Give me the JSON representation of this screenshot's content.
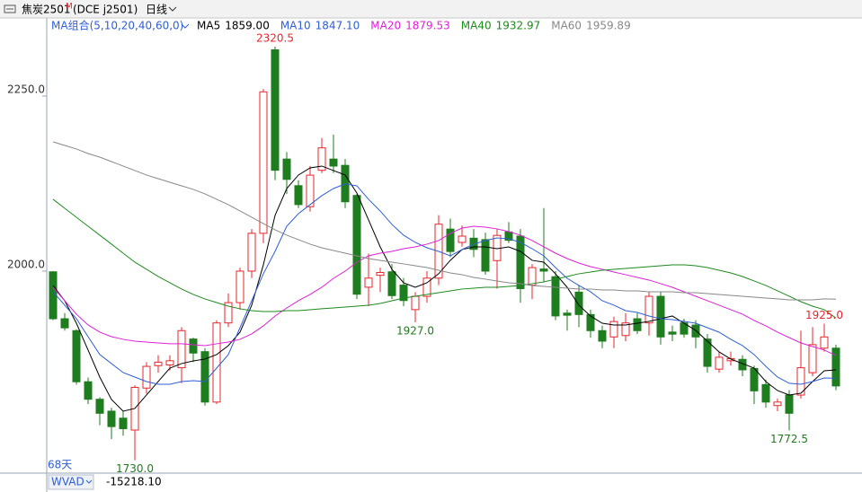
{
  "toolbar": {
    "symbol": "焦炭2501",
    "symbol_flag": "M",
    "exchange_code": "(DCE j2501)",
    "period": "日线"
  },
  "chart_data": {
    "type": "candlestick",
    "indicator_title": "MA组合(5,10,20,40,60,0)",
    "days_label": "68天",
    "ylim": [
      1711.5,
      2361.5
    ],
    "yticks": [
      {
        "value": 2250,
        "label": "2250.0"
      },
      {
        "value": 2000,
        "label": "2000.0"
      }
    ],
    "grid": false,
    "up_color": "#e8262b",
    "down_color": "#1e7d1e",
    "candles": {
      "open": [
        1999,
        1932,
        1915,
        1842,
        1817,
        1800,
        1790,
        1773,
        1833,
        1865,
        1866,
        1862,
        1903,
        1885,
        1813,
        1926,
        1955,
        2000,
        2054,
        2316,
        2160,
        2122,
        2092,
        2144,
        2160,
        2151,
        2108,
        1977,
        1994,
        1999,
        1980,
        1945,
        1964,
        1990,
        2060,
        2041,
        2047,
        2045,
        2015,
        2056,
        2050,
        1980,
        2003,
        1992,
        1940,
        1970,
        1938,
        1915,
        1906,
        1908,
        1932,
        1926,
        1964,
        1913,
        1926,
        1923,
        1903,
        1860,
        1872,
        1874,
        1861,
        1838,
        1808,
        1823,
        1823,
        1855,
        1890,
        1890
      ],
      "high": [
        2000,
        1940,
        1917,
        1848,
        1820,
        1805,
        1800,
        1837,
        1870,
        1880,
        1880,
        1920,
        1905,
        1890,
        1930,
        1968,
        2005,
        2060,
        2260,
        2320.5,
        2170,
        2130,
        2150,
        2190,
        2195,
        2160,
        2110,
        2025,
        2005,
        2010,
        1990,
        1970,
        2000,
        2080,
        2075,
        2065,
        2060,
        2055,
        2060,
        2070,
        2060,
        2010,
        2090,
        2000,
        1945,
        1980,
        1945,
        1922,
        1935,
        1940,
        1940,
        1970,
        1970,
        1922,
        1932,
        1930,
        1910,
        1885,
        1885,
        1880,
        1865,
        1845,
        1818,
        1830,
        1915,
        1920,
        1925,
        1895
      ],
      "low": [
        1930,
        1915,
        1838,
        1810,
        1780,
        1760,
        1765,
        1730,
        1825,
        1855,
        1858,
        1840,
        1870,
        1808,
        1810,
        1920,
        1945,
        1990,
        2040,
        2130,
        2110,
        2090,
        2085,
        2140,
        2140,
        2090,
        1960,
        1950,
        1970,
        1960,
        1950,
        1927,
        1955,
        1980,
        2020,
        2035,
        2020,
        1995,
        1975,
        2040,
        1955,
        1960,
        1985,
        1930,
        1915,
        1920,
        1905,
        1890,
        1890,
        1900,
        1910,
        1908,
        1895,
        1900,
        1905,
        1890,
        1855,
        1855,
        1865,
        1850,
        1810,
        1805,
        1800,
        1772.5,
        1818,
        1850,
        1885,
        1830
      ],
      "close": [
        1932,
        1919,
        1842,
        1817,
        1797,
        1778,
        1775,
        1834,
        1864,
        1870,
        1872,
        1915,
        1883,
        1813,
        1926,
        1955,
        2000,
        2054,
        2256,
        2144,
        2131,
        2095,
        2137,
        2176,
        2150,
        2099,
        1967,
        1990,
        1998,
        1965,
        1958,
        1964,
        1990,
        2067,
        2028,
        2050,
        2031,
        2000,
        2051,
        2044,
        1975,
        2005,
        2000,
        1936,
        1937,
        1938,
        1915,
        1900,
        1928,
        1926,
        1915,
        1964,
        1906,
        1910,
        1910,
        1906,
        1864,
        1877,
        1875,
        1859,
        1829,
        1813,
        1813,
        1797,
        1862,
        1895,
        1906,
        1836
      ]
    },
    "high_labels": [
      {
        "value": 2320.5,
        "label": "2320.5"
      },
      {
        "value": 1925,
        "label": "1925.0"
      }
    ],
    "low_labels": [
      {
        "value": 1730,
        "label": "1730.0"
      },
      {
        "value": 1927,
        "label": "1927.0"
      },
      {
        "value": 1772.5,
        "label": "1772.5"
      }
    ],
    "ma_series": [
      {
        "name": "MA5",
        "color": "#000000",
        "last_label": "1859.00",
        "values": [
          1979.5,
          1957.7,
          1925.6,
          1887.2,
          1848.7,
          1816.7,
          1800,
          1803.9,
          1823.1,
          1842.3,
          1861.5,
          1868,
          1871.8,
          1874.4,
          1880.8,
          1893.6,
          1912.8,
          1951.3,
          2009,
          2079.5,
          2117.9,
          2137.2,
          2147.4,
          2150,
          2143.6,
          2137.2,
          2111.5,
          2073.1,
          2034.6,
          2002.6,
          1983.3,
          1976.9,
          1983.3,
          1996.2,
          2015.4,
          2030.8,
          2034.6,
          2034.6,
          2032,
          2034.6,
          2028.2,
          2015.4,
          2012.8,
          1996.2,
          1976.9,
          1951.3,
          1935.9,
          1925.6,
          1923.1,
          1923.1,
          1925.6,
          1928.2,
          1932.1,
          1935.9,
          1925.6,
          1915.4,
          1900,
          1884.6,
          1874.4,
          1868,
          1861.5,
          1842.3,
          1829.5,
          1823.1,
          1825.6,
          1842.3,
          1857.7,
          1859
        ]
      },
      {
        "name": "MA10",
        "color": "#2e5fd6",
        "last_label": "1847.10",
        "values": [
          1970.5,
          1951.3,
          1932.1,
          1906.4,
          1880.8,
          1868,
          1855.1,
          1848.7,
          1842.3,
          1838.5,
          1838.5,
          1842.3,
          1843.6,
          1842.3,
          1861.5,
          1880.8,
          1919.2,
          1957.7,
          1996.2,
          2028.2,
          2064.1,
          2082,
          2094.9,
          2107.7,
          2117.9,
          2124.4,
          2121.8,
          2102.6,
          2085.9,
          2066.7,
          2051.3,
          2041,
          2033.3,
          2028.2,
          2021.8,
          2030.8,
          2038.5,
          2043.6,
          2047.4,
          2046.2,
          2041,
          2032,
          2021.8,
          2005.1,
          1989.7,
          1979.5,
          1970.5,
          1957.7,
          1951.3,
          1943.6,
          1941,
          1935.9,
          1932.1,
          1930.8,
          1928.2,
          1925.6,
          1919.2,
          1912.8,
          1902.6,
          1893.6,
          1880.8,
          1864.1,
          1848.7,
          1839.8,
          1838.5,
          1842.3,
          1847.4,
          1847.1
        ]
      },
      {
        "name": "MA20",
        "color": "#e020d8",
        "last_label": "1879.53",
        "values": [
          1976.9,
          1957.7,
          1938.5,
          1923.1,
          1912.8,
          1906.4,
          1902.6,
          1900,
          1898.7,
          1897.4,
          1896.2,
          1896.2,
          1894.9,
          1893.6,
          1896.2,
          1898.7,
          1902.6,
          1910.3,
          1921.8,
          1935.9,
          1947.4,
          1957.7,
          1966.7,
          1976.9,
          1989.7,
          2000,
          2012.8,
          2021.8,
          2025.6,
          2028.2,
          2032,
          2034.6,
          2038.5,
          2043.6,
          2053.8,
          2061.5,
          2064.1,
          2062.8,
          2060.3,
          2056.4,
          2051.3,
          2043.6,
          2034.6,
          2025.6,
          2017.9,
          2011.5,
          2006.4,
          2002.6,
          1998.7,
          1994.9,
          1991,
          1987.2,
          1982.1,
          1976.9,
          1970.5,
          1964.1,
          1957.7,
          1951.3,
          1944.9,
          1938.5,
          1929.5,
          1921.8,
          1912.8,
          1905.1,
          1897.4,
          1892.3,
          1887.2,
          1879.53
        ]
      },
      {
        "name": "MA40",
        "color": "#1e8a1e",
        "last_label": "1932.97",
        "values": [
          2102.6,
          2089.7,
          2076.9,
          2064.1,
          2051.3,
          2038.5,
          2025.6,
          2012.8,
          2002.6,
          1992.3,
          1983.3,
          1974.4,
          1966.7,
          1960.3,
          1955.1,
          1950,
          1946.2,
          1943.6,
          1942.3,
          1942.3,
          1943.6,
          1943.6,
          1944.9,
          1946.2,
          1947.4,
          1948.7,
          1950,
          1951.3,
          1953.8,
          1957.7,
          1961.5,
          1964.1,
          1966.7,
          1969.2,
          1971.8,
          1974.4,
          1975.6,
          1976.9,
          1976.9,
          1978.2,
          1979.5,
          1982.1,
          1984.6,
          1988.5,
          1992.3,
          1996.2,
          1998.7,
          2001.3,
          2002.6,
          2003.8,
          2005.1,
          2006.4,
          2007.7,
          2009,
          2009,
          2007.7,
          2005.1,
          2001.3,
          1997.4,
          1992.3,
          1985.9,
          1979.5,
          1971.8,
          1964.1,
          1956.4,
          1950,
          1944.9,
          1932.97
        ]
      },
      {
        "name": "MA60",
        "color": "#888888",
        "last_label": "1959.89",
        "values": [
          2184.6,
          2179.5,
          2174.4,
          2167.9,
          2162.8,
          2156.4,
          2150,
          2143.6,
          2137.2,
          2132,
          2126.9,
          2121.8,
          2116.7,
          2110.3,
          2102.6,
          2094.9,
          2085.9,
          2076.9,
          2067.9,
          2059,
          2051.3,
          2044.9,
          2038.5,
          2033.3,
          2029.5,
          2025.6,
          2021.8,
          2017.9,
          2015.4,
          2012.8,
          2010.3,
          2007.7,
          2005.1,
          2001.3,
          1997.4,
          1994.9,
          1991,
          1988.5,
          1985.9,
          1983.3,
          1982.1,
          1979.5,
          1978.2,
          1976.9,
          1975.6,
          1974.4,
          1974.4,
          1973.1,
          1973.1,
          1971.8,
          1971.8,
          1970.5,
          1970.5,
          1970.5,
          1969.2,
          1969.2,
          1967.9,
          1966.7,
          1965.4,
          1964.1,
          1962.8,
          1961.5,
          1960.3,
          1959,
          1959,
          1959,
          1960.3,
          1959.89
        ]
      }
    ]
  },
  "sub_panel": {
    "name": "WVAD",
    "value_label": "-15218.10"
  }
}
